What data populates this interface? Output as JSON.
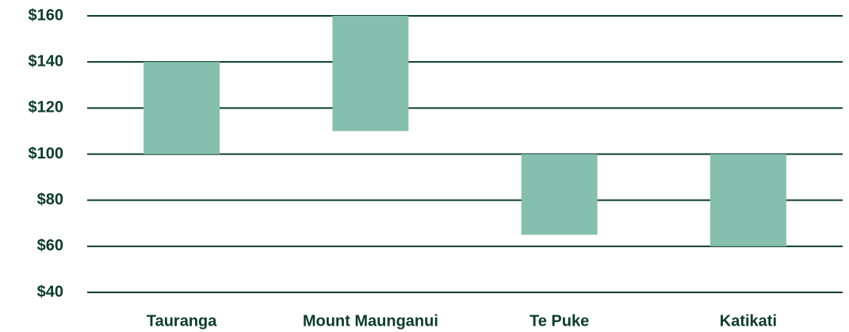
{
  "chart_data": {
    "type": "range_bar",
    "categories": [
      "Tauranga",
      "Mount Maunganui",
      "Te Puke",
      "Katikati"
    ],
    "low": [
      100,
      110,
      65,
      60
    ],
    "high": [
      140,
      160,
      100,
      100
    ],
    "color": "#86bfae",
    "ylim": [
      40,
      160
    ],
    "yticks": [
      {
        "value": 40,
        "label": "$40"
      },
      {
        "value": 60,
        "label": "$60"
      },
      {
        "value": 80,
        "label": "$80"
      },
      {
        "value": 100,
        "label": "$100"
      },
      {
        "value": 120,
        "label": "$120"
      },
      {
        "value": 140,
        "label": "$140"
      },
      {
        "value": 160,
        "label": "$160"
      }
    ],
    "grid": true
  }
}
